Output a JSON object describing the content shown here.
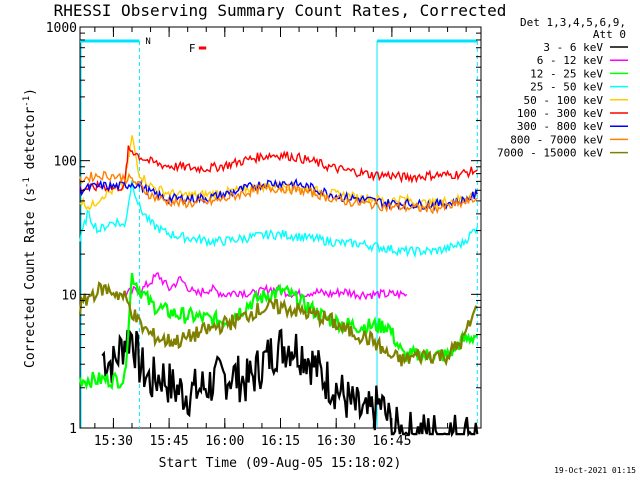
{
  "chart_data": {
    "type": "line",
    "title": "RHESSI Observing Summary Count Rates, Corrected",
    "xlabel": "Start Time (09-Aug-05 15:18:02)",
    "ylabel_main": "Corrected Count Rate (s",
    "ylabel_sup1": "-1",
    "ylabel_mid": " detector",
    "ylabel_sup2": "-1",
    "ylabel_end": ")",
    "yscale": "log",
    "ylim": [
      1,
      1000
    ],
    "xlim_min": [
      21,
      129
    ],
    "grid": false,
    "legend_placement": "right",
    "y_ticks": [
      {
        "v": 1,
        "label": "1"
      },
      {
        "v": 10,
        "label": "10"
      },
      {
        "v": 100,
        "label": "100"
      },
      {
        "v": 1000,
        "label": "1000"
      }
    ],
    "x_ticks": [
      {
        "v": 30,
        "label": "15:30"
      },
      {
        "v": 45,
        "label": "15:45"
      },
      {
        "v": 60,
        "label": "16:00"
      },
      {
        "v": 75,
        "label": "16:15"
      },
      {
        "v": 90,
        "label": "16:30"
      },
      {
        "v": 105,
        "label": "16:45"
      }
    ],
    "detector_header": [
      "Det 1,3,4,5,6,9,",
      "Att 0"
    ],
    "flags": {
      "night_label": "N",
      "flare_label": "F",
      "night_color": "#00e5ff",
      "flare_color": "#ff0000",
      "night_intervals": [
        [
          21,
          37
        ],
        [
          101,
          128
        ]
      ],
      "flare_interval": [
        53,
        55
      ],
      "vlines": [
        37,
        101,
        128
      ]
    },
    "footer_timestamp": "19-Oct-2021 01:15",
    "series": [
      {
        "name": "3 - 6 keV",
        "color": "#000000",
        "x": [
          27,
          30,
          33,
          35,
          37,
          40,
          43,
          46,
          50,
          54,
          58,
          62,
          66,
          70,
          74,
          78,
          82,
          86,
          90,
          94,
          98,
          102,
          105,
          108,
          112,
          116,
          120,
          124,
          128
        ],
        "y": [
          3.5,
          3.0,
          4.5,
          5.0,
          3.0,
          2.2,
          2.5,
          2.0,
          1.8,
          2.0,
          2.3,
          2.5,
          2.2,
          3.0,
          4.0,
          4.2,
          3.5,
          2.5,
          2.0,
          1.5,
          1.2,
          1.5,
          1.0,
          0.9,
          0.9,
          0.9,
          0.9,
          0.9,
          0.9
        ]
      },
      {
        "name": "6 - 12 keV",
        "color": "#ff00ff",
        "x": [
          33,
          35,
          38,
          42,
          45,
          48,
          52,
          56,
          60,
          64,
          68,
          72,
          76,
          80,
          84,
          88,
          92,
          96,
          100,
          104,
          109
        ],
        "y": [
          10,
          10.5,
          11,
          14,
          11,
          13,
          10,
          11,
          10,
          10.5,
          10,
          11,
          10.5,
          10,
          10.5,
          10,
          10.5,
          10,
          10,
          10,
          10
        ]
      },
      {
        "name": "12 - 25 keV",
        "color": "#00ff00",
        "x": [
          21,
          24,
          27,
          30,
          33,
          35,
          37,
          40,
          44,
          48,
          52,
          56,
          60,
          64,
          68,
          72,
          76,
          80,
          84,
          88,
          92,
          96,
          100,
          104,
          108,
          112,
          116,
          120,
          124,
          128
        ],
        "y": [
          2.3,
          2.3,
          2.3,
          2.3,
          2.3,
          14,
          11,
          8.5,
          7.5,
          7,
          6.8,
          6.5,
          6.3,
          7.5,
          9,
          10,
          10.5,
          9,
          7.5,
          6.5,
          6,
          5.8,
          5.8,
          5.8,
          3.5,
          3.5,
          3.5,
          3.5,
          4.5,
          5
        ]
      },
      {
        "name": "25 - 50 keV",
        "color": "#00ffff",
        "x": [
          21,
          23,
          26,
          29,
          31,
          33,
          35,
          37,
          40,
          44,
          48,
          52,
          56,
          60,
          64,
          68,
          72,
          76,
          80,
          84,
          88,
          92,
          96,
          100,
          104,
          108,
          112,
          116,
          120,
          124,
          128
        ],
        "y": [
          25,
          40,
          30,
          34,
          35,
          32,
          70,
          45,
          34,
          29,
          27,
          26,
          25,
          25,
          26,
          27,
          28,
          28,
          27,
          26,
          25,
          24,
          24,
          23,
          22,
          21,
          21,
          21,
          22,
          24,
          32
        ]
      },
      {
        "name": "50 - 100 keV",
        "color": "#ffcc00",
        "x": [
          21,
          24,
          27,
          30,
          33,
          34,
          35,
          37,
          40,
          44,
          48,
          52,
          56,
          60,
          64,
          68,
          72,
          76,
          80,
          84,
          88,
          92,
          96,
          100,
          104,
          108,
          112,
          116,
          120,
          124,
          128
        ],
        "y": [
          50,
          45,
          55,
          60,
          65,
          100,
          150,
          80,
          65,
          58,
          55,
          55,
          56,
          58,
          60,
          63,
          65,
          65,
          63,
          60,
          57,
          55,
          53,
          52,
          50,
          52,
          48,
          48,
          50,
          52,
          58
        ]
      },
      {
        "name": "100 - 300 keV",
        "color": "#ff0000",
        "x": [
          21,
          24,
          27,
          30,
          33,
          34,
          35,
          37,
          40,
          44,
          48,
          52,
          56,
          60,
          64,
          68,
          72,
          76,
          80,
          84,
          88,
          92,
          96,
          100,
          104,
          108,
          112,
          116,
          120,
          124,
          128
        ],
        "y": [
          62,
          62,
          65,
          62,
          65,
          120,
          120,
          108,
          98,
          92,
          90,
          88,
          88,
          92,
          98,
          105,
          110,
          110,
          105,
          98,
          90,
          85,
          82,
          78,
          78,
          75,
          76,
          78,
          78,
          80,
          85
        ]
      },
      {
        "name": "300 - 800 keV",
        "color": "#0000ff",
        "x": [
          21,
          24,
          27,
          30,
          33,
          35,
          37,
          40,
          44,
          48,
          52,
          56,
          60,
          64,
          68,
          72,
          76,
          80,
          84,
          88,
          92,
          96,
          100,
          104,
          108,
          112,
          116,
          120,
          124,
          128
        ],
        "y": [
          60,
          63,
          65,
          64,
          65,
          68,
          65,
          58,
          52,
          52,
          52,
          53,
          56,
          60,
          65,
          68,
          68,
          66,
          62,
          57,
          53,
          52,
          50,
          48,
          48,
          47,
          47,
          48,
          50,
          56
        ]
      },
      {
        "name": "800 - 7000 keV",
        "color": "#ff8000",
        "x": [
          21,
          24,
          27,
          30,
          33,
          35,
          37,
          40,
          44,
          48,
          52,
          56,
          60,
          64,
          68,
          72,
          76,
          80,
          84,
          88,
          92,
          96,
          100,
          104,
          108,
          112,
          116,
          120,
          124,
          128
        ],
        "y": [
          72,
          76,
          78,
          77,
          74,
          72,
          65,
          55,
          50,
          48,
          48,
          49,
          52,
          56,
          60,
          62,
          62,
          60,
          57,
          53,
          50,
          48,
          47,
          45,
          45,
          44,
          44,
          45,
          48,
          52
        ]
      },
      {
        "name": "7000 - 15000 keV",
        "color": "#808000",
        "x": [
          21,
          24,
          27,
          30,
          33,
          35,
          37,
          40,
          44,
          48,
          52,
          56,
          60,
          64,
          68,
          72,
          76,
          80,
          84,
          88,
          92,
          96,
          100,
          104,
          108,
          112,
          116,
          120,
          124,
          128
        ],
        "y": [
          8,
          10,
          11,
          10.5,
          9.5,
          7.5,
          6,
          5,
          4.5,
          4.5,
          5,
          5.5,
          6,
          6.5,
          7.5,
          8,
          8,
          7.5,
          7,
          6.5,
          5.5,
          5,
          4.5,
          3.5,
          3.2,
          3.5,
          3.5,
          3.5,
          4.5,
          8
        ]
      }
    ]
  }
}
